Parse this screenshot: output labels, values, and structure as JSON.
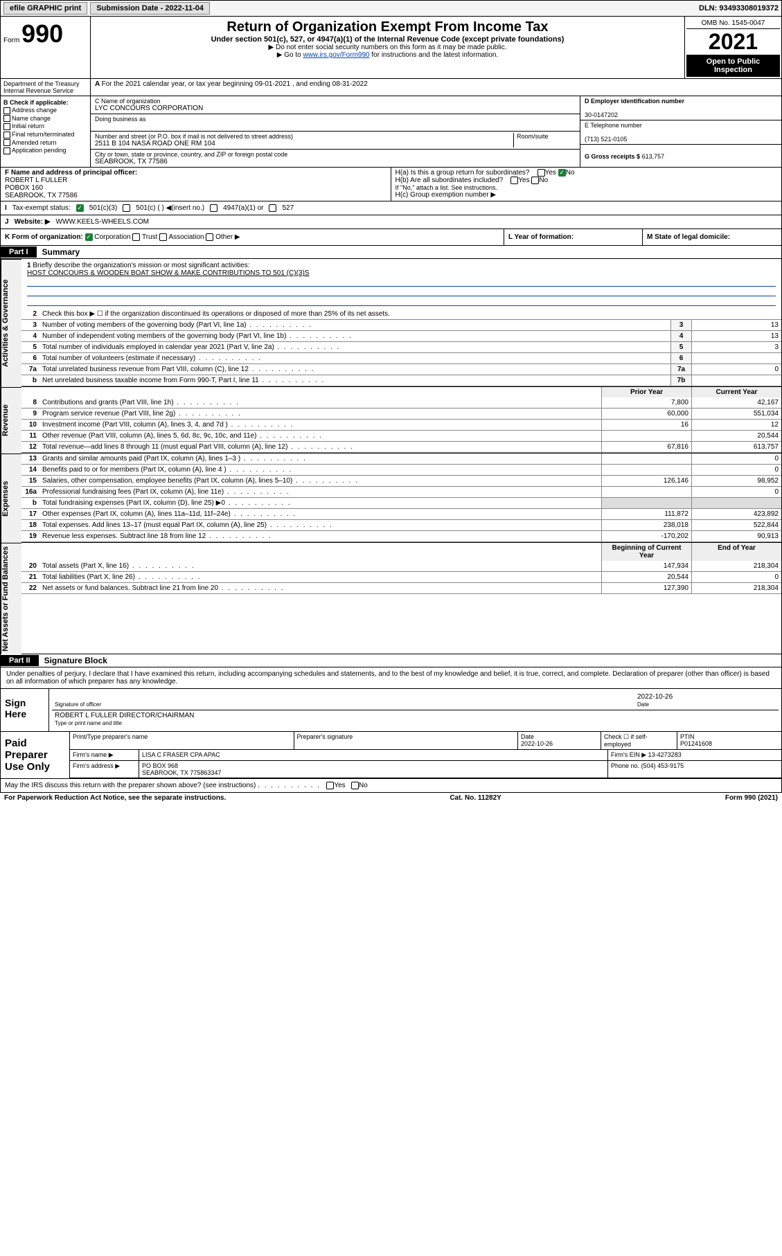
{
  "topbar": {
    "efile": "efile GRAPHIC print",
    "submission_label": "Submission Date - 2022-11-04",
    "dln": "DLN: 93493308019372"
  },
  "header": {
    "form_prefix": "Form",
    "form_num": "990",
    "title": "Return of Organization Exempt From Income Tax",
    "sub": "Under section 501(c), 527, or 4947(a)(1) of the Internal Revenue Code (except private foundations)",
    "line1": "▶ Do not enter social security numbers on this form as it may be made public.",
    "line2_pre": "▶ Go to ",
    "line2_link": "www.irs.gov/Form990",
    "line2_post": " for instructions and the latest information.",
    "omb": "OMB No. 1545-0047",
    "year": "2021",
    "open": "Open to Public Inspection",
    "dept": "Department of the Treasury Internal Revenue Service"
  },
  "row_a": "For the 2021 calendar year, or tax year beginning 09-01-2021   , and ending 08-31-2022",
  "col_b": {
    "hdr": "B Check if applicable:",
    "opts": [
      "Address change",
      "Name change",
      "Initial return",
      "Final return/terminated",
      "Amended return",
      "Application pending"
    ]
  },
  "col_c": {
    "name_lbl": "C Name of organization",
    "name_val": "LYC CONCOURS CORPORATION",
    "dba_lbl": "Doing business as",
    "addr_lbl": "Number and street (or P.O. box if mail is not delivered to street address)",
    "room_lbl": "Room/suite",
    "addr_val": "2511 B 104 NASA ROAD ONE RM 104",
    "city_lbl": "City or town, state or province, country, and ZIP or foreign postal code",
    "city_val": "SEABROOK, TX  77586"
  },
  "col_d": {
    "ein_lbl": "D Employer identification number",
    "ein_val": "30-0147202",
    "tel_lbl": "E Telephone number",
    "tel_val": "(713) 521-0105",
    "gross_lbl": "G Gross receipts $",
    "gross_val": "613,757"
  },
  "row_f": {
    "lbl": "F  Name and address of principal officer:",
    "name": "ROBERT L FULLER",
    "addr1": "POBOX 160",
    "addr2": "SEABROOK, TX  77586"
  },
  "row_h": {
    "ha": "H(a)  Is this a group return for subordinates?",
    "hb": "H(b)  Are all subordinates included?",
    "hb_note": "If \"No,\" attach a list. See instructions.",
    "hc": "H(c)  Group exemption number ▶",
    "yes": "Yes",
    "no": "No"
  },
  "row_i": {
    "lbl": "Tax-exempt status:",
    "o1": "501(c)(3)",
    "o2": "501(c) (   ) ◀(insert no.)",
    "o3": "4947(a)(1) or",
    "o4": "527"
  },
  "row_j": {
    "lbl": "Website: ▶",
    "val": "WWW.KEELS-WHEELS.COM"
  },
  "row_k": {
    "lbl": "K Form of organization:",
    "o1": "Corporation",
    "o2": "Trust",
    "o3": "Association",
    "o4": "Other ▶"
  },
  "row_l": "L Year of formation:",
  "row_m": "M State of legal domicile:",
  "part1": {
    "tag": "Part I",
    "title": "Summary"
  },
  "mission": {
    "q": "Briefly describe the organization's mission or most significant activities:",
    "a": "HOST CONCOURS & WOODEN BOAT SHOW & MAKE CONTRIBUTIONS TO 501 (C)(3)S"
  },
  "gov_lines": [
    {
      "n": "2",
      "t": "Check this box ▶ ☐  if the organization discontinued its operations or disposed of more than 25% of its net assets."
    },
    {
      "n": "3",
      "t": "Number of voting members of the governing body (Part VI, line 1a)",
      "box": "3",
      "v": "13"
    },
    {
      "n": "4",
      "t": "Number of independent voting members of the governing body (Part VI, line 1b)",
      "box": "4",
      "v": "13"
    },
    {
      "n": "5",
      "t": "Total number of individuals employed in calendar year 2021 (Part V, line 2a)",
      "box": "5",
      "v": "3"
    },
    {
      "n": "6",
      "t": "Total number of volunteers (estimate if necessary)",
      "box": "6",
      "v": ""
    },
    {
      "n": "7a",
      "t": "Total unrelated business revenue from Part VIII, column (C), line 12",
      "box": "7a",
      "v": "0"
    },
    {
      "n": "b",
      "t": "Net unrelated business taxable income from Form 990-T, Part I, line 11",
      "box": "7b",
      "v": ""
    }
  ],
  "col_hdrs": {
    "prior": "Prior Year",
    "current": "Current Year"
  },
  "revenue_lines": [
    {
      "n": "8",
      "t": "Contributions and grants (Part VIII, line 1h)",
      "p": "7,800",
      "c": "42,167"
    },
    {
      "n": "9",
      "t": "Program service revenue (Part VIII, line 2g)",
      "p": "60,000",
      "c": "551,034"
    },
    {
      "n": "10",
      "t": "Investment income (Part VIII, column (A), lines 3, 4, and 7d )",
      "p": "16",
      "c": "12"
    },
    {
      "n": "11",
      "t": "Other revenue (Part VIII, column (A), lines 5, 6d, 8c, 9c, 10c, and 11e)",
      "p": "",
      "c": "20,544"
    },
    {
      "n": "12",
      "t": "Total revenue—add lines 8 through 11 (must equal Part VIII, column (A), line 12)",
      "p": "67,816",
      "c": "613,757"
    }
  ],
  "expense_lines": [
    {
      "n": "13",
      "t": "Grants and similar amounts paid (Part IX, column (A), lines 1–3 )",
      "p": "",
      "c": "0"
    },
    {
      "n": "14",
      "t": "Benefits paid to or for members (Part IX, column (A), line 4 )",
      "p": "",
      "c": "0"
    },
    {
      "n": "15",
      "t": "Salaries, other compensation, employee benefits (Part IX, column (A), lines 5–10)",
      "p": "126,146",
      "c": "98,952"
    },
    {
      "n": "16a",
      "t": "Professional fundraising fees (Part IX, column (A), line 11e)",
      "p": "",
      "c": "0"
    },
    {
      "n": "b",
      "t": "Total fundraising expenses (Part IX, column (D), line 25) ▶0",
      "p": "shade",
      "c": "shade"
    },
    {
      "n": "17",
      "t": "Other expenses (Part IX, column (A), lines 11a–11d, 11f–24e)",
      "p": "111,872",
      "c": "423,892"
    },
    {
      "n": "18",
      "t": "Total expenses. Add lines 13–17 (must equal Part IX, column (A), line 25)",
      "p": "238,018",
      "c": "522,844"
    },
    {
      "n": "19",
      "t": "Revenue less expenses. Subtract line 18 from line 12",
      "p": "-170,202",
      "c": "90,913"
    }
  ],
  "bal_hdrs": {
    "beg": "Beginning of Current Year",
    "end": "End of Year"
  },
  "bal_lines": [
    {
      "n": "20",
      "t": "Total assets (Part X, line 16)",
      "p": "147,934",
      "c": "218,304"
    },
    {
      "n": "21",
      "t": "Total liabilities (Part X, line 26)",
      "p": "20,544",
      "c": "0"
    },
    {
      "n": "22",
      "t": "Net assets or fund balances. Subtract line 21 from line 20",
      "p": "127,390",
      "c": "218,304"
    }
  ],
  "vlabels": {
    "gov": "Activities & Governance",
    "rev": "Revenue",
    "exp": "Expenses",
    "net": "Net Assets or Fund Balances"
  },
  "part2": {
    "tag": "Part II",
    "title": "Signature Block"
  },
  "declare": "Under penalties of perjury, I declare that I have examined this return, including accompanying schedules and statements, and to the best of my knowledge and belief, it is true, correct, and complete. Declaration of preparer (other than officer) is based on all information of which preparer has any knowledge.",
  "sign": {
    "here": "Sign Here",
    "sig_lbl": "Signature of officer",
    "date": "2022-10-26",
    "date_lbl": "Date",
    "name": "ROBERT L FULLER  DIRECTOR/CHAIRMAN",
    "name_lbl": "Type or print name and title"
  },
  "paid": {
    "title": "Paid Preparer Use Only",
    "h1": "Print/Type preparer's name",
    "h2": "Preparer's signature",
    "h3": "Date",
    "h3v": "2022-10-26",
    "h4": "Check ☐ if self-employed",
    "h5": "PTIN",
    "h5v": "P01241608",
    "firm_lbl": "Firm's name    ▶",
    "firm_val": "LISA C FRASER CPA APAC",
    "ein_lbl": "Firm's EIN ▶",
    "ein_val": "13-4273283",
    "addr_lbl": "Firm's address ▶",
    "addr_val": "PO BOX 968",
    "addr_val2": "SEABROOK, TX  775863347",
    "phone_lbl": "Phone no.",
    "phone_val": "(504) 453-9175"
  },
  "may_irs": "May the IRS discuss this return with the preparer shown above? (see instructions)",
  "footer": {
    "left": "For Paperwork Reduction Act Notice, see the separate instructions.",
    "mid": "Cat. No. 11282Y",
    "right": "Form 990 (2021)"
  },
  "colors": {
    "link": "#0645ad",
    "check": "#1a7f37"
  }
}
